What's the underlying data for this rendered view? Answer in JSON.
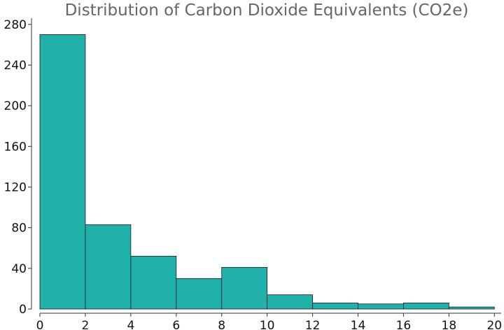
{
  "chart_data": {
    "type": "bar",
    "title": "Distribution of Carbon Dioxide Equivalents (CO2e)",
    "xlabel": "",
    "ylabel": "",
    "bin_edges": [
      0,
      2,
      4,
      6,
      8,
      10,
      12,
      14,
      16,
      18,
      20
    ],
    "values": [
      270,
      83,
      52,
      30,
      41,
      14,
      6,
      5,
      6,
      2
    ],
    "xlim": [
      0,
      20.3
    ],
    "ylim": [
      0,
      282
    ],
    "xticks": [
      0,
      2,
      4,
      6,
      8,
      10,
      12,
      14,
      16,
      18,
      20
    ],
    "yticks": [
      0,
      40,
      80,
      120,
      160,
      200,
      240,
      280
    ],
    "bar_color": "#20b2aa",
    "edge_color": "#1c1c1c",
    "grid": false,
    "legend": "none"
  }
}
